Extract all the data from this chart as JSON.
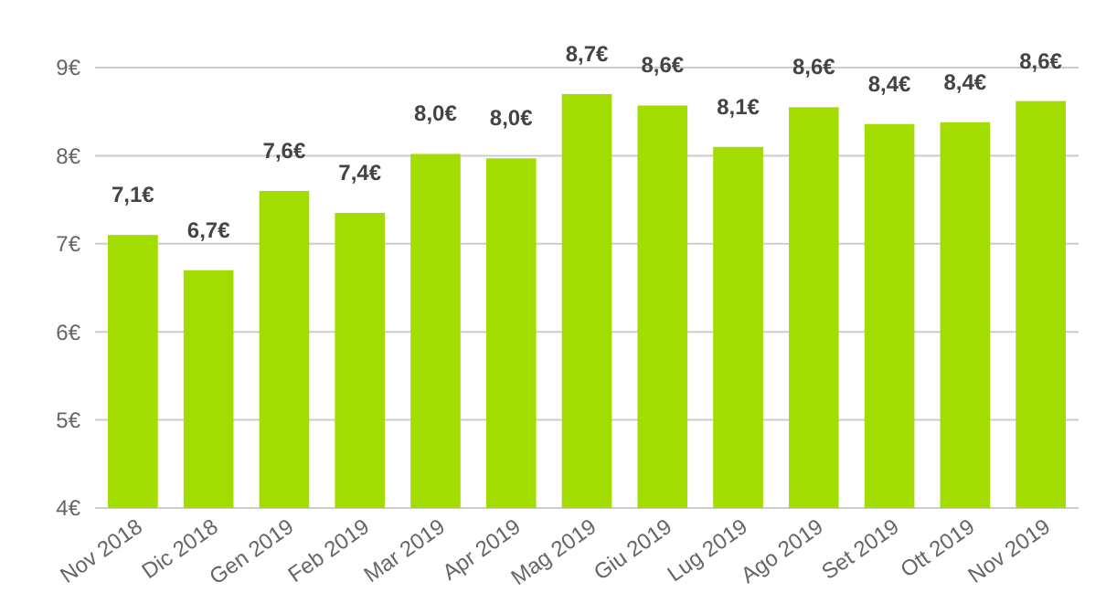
{
  "chart_data": {
    "type": "bar",
    "categories": [
      "Nov 2018",
      "Dic 2018",
      "Gen 2019",
      "Feb 2019",
      "Mar 2019",
      "Apr 2019",
      "Mag 2019",
      "Giu 2019",
      "Lug 2019",
      "Ago 2019",
      "Set 2019",
      "Ott 2019",
      "Nov 2019"
    ],
    "values": [
      7.1,
      6.7,
      7.6,
      7.35,
      8.02,
      7.97,
      8.7,
      8.57,
      8.1,
      8.55,
      8.36,
      8.38,
      8.62
    ],
    "value_labels": [
      "7,1€",
      "6,7€",
      "7,6€",
      "7,4€",
      "8,0€",
      "8,0€",
      "8,7€",
      "8,6€",
      "8,1€",
      "8,6€",
      "8,4€",
      "8,4€",
      "8,6€"
    ],
    "color": "#a2dc00",
    "ylim": [
      4,
      9
    ],
    "yticks": [
      {
        "value": 4,
        "label": "4€"
      },
      {
        "value": 5,
        "label": "5€"
      },
      {
        "value": 6,
        "label": "6€"
      },
      {
        "value": 7,
        "label": "7€"
      },
      {
        "value": 8,
        "label": "8€"
      },
      {
        "value": 9,
        "label": "9€"
      }
    ],
    "grid": "y"
  }
}
